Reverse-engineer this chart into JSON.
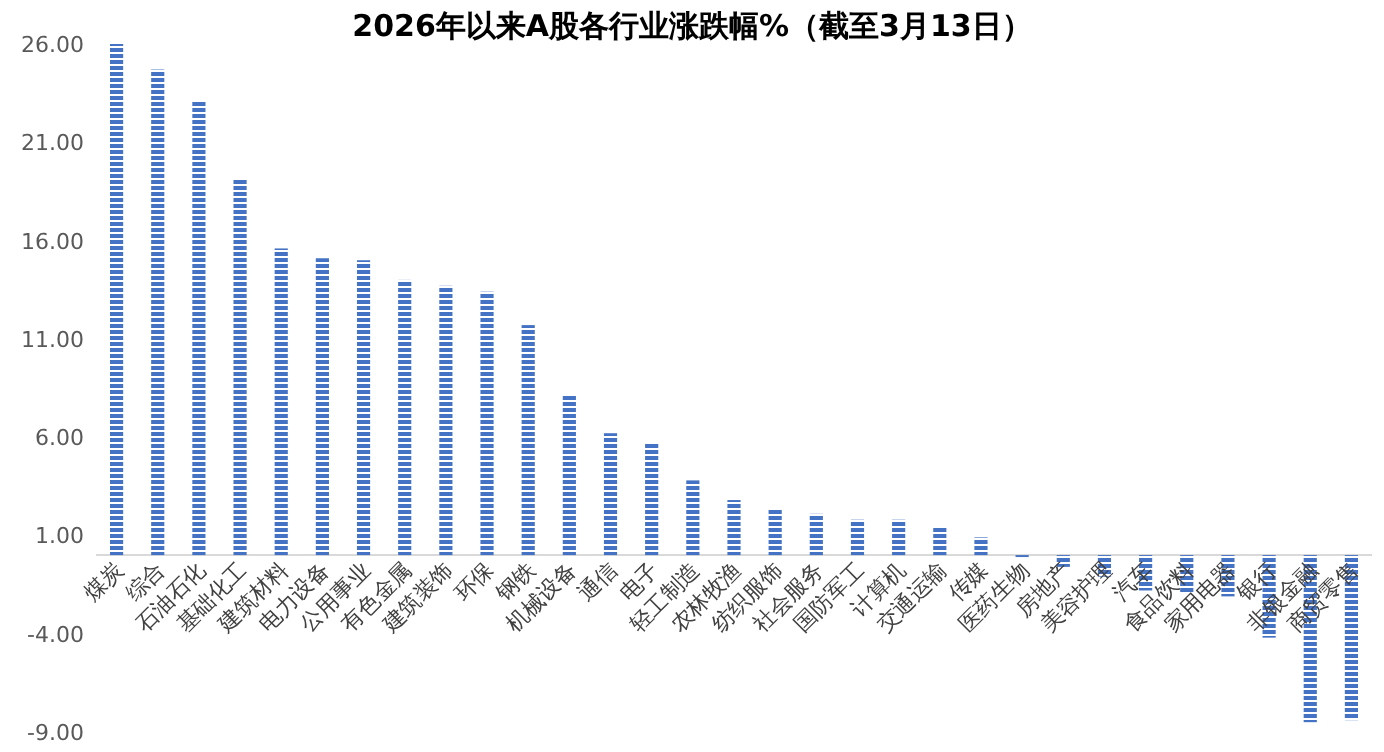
{
  "chart_data": {
    "type": "bar",
    "title": "2026年以来A股各行业涨跌幅%（截至3月13日）",
    "categories": [
      "煤炭",
      "综合",
      "石油石化",
      "基础化工",
      "建筑材料",
      "电力设备",
      "公用事业",
      "有色金属",
      "建筑装饰",
      "环保",
      "钢铁",
      "机械设备",
      "通信",
      "电子",
      "轻工制造",
      "农林牧渔",
      "纺织服饰",
      "社会服务",
      "国防军工",
      "计算机",
      "交通运输",
      "传媒",
      "医药生物",
      "房地产",
      "美容护理",
      "汽车",
      "食品饮料",
      "家用电器",
      "银行",
      "非银金融",
      "商贸零售"
    ],
    "values": [
      26.0,
      24.7,
      23.1,
      19.1,
      15.6,
      15.1,
      15.0,
      14.0,
      13.7,
      13.4,
      11.7,
      8.1,
      6.2,
      5.7,
      3.8,
      2.8,
      2.3,
      2.1,
      1.8,
      1.8,
      1.4,
      0.9,
      -0.1,
      -0.6,
      -1.1,
      -1.8,
      -1.9,
      -2.1,
      -4.2,
      -8.5,
      -8.4
    ],
    "color": "#4472c4",
    "ylim": [
      -9,
      26
    ],
    "yticks": [
      {
        "value": 26,
        "label": "26.00"
      },
      {
        "value": 21,
        "label": "21.00"
      },
      {
        "value": 16,
        "label": "16.00"
      },
      {
        "value": 11,
        "label": "11.00"
      },
      {
        "value": 6,
        "label": "6.00"
      },
      {
        "value": 1,
        "label": "1.00"
      },
      {
        "value": -4,
        "label": "-4.00"
      },
      {
        "value": -9,
        "label": "-9.00"
      }
    ],
    "grid": false
  }
}
